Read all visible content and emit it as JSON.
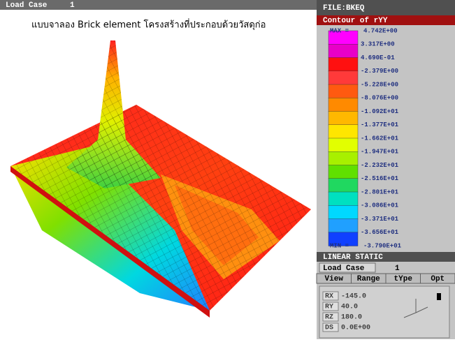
{
  "caption": "แบบจาลอง Brick element โครงสร้างที่ประกอบด้วยวัสดุก่อ",
  "top_bar": {
    "label": "Load Case",
    "value": "1"
  },
  "side_panel": {
    "file": "FILE:BKEQ",
    "contour_title": "Contour of rYY",
    "legend": {
      "max_label": "MAX =",
      "max_value": "4.742E+00",
      "entries": [
        "3.317E+00",
        "4.690E-01",
        "-2.379E+00",
        "-5.228E+00",
        "-8.076E+00",
        "-1.092E+01",
        "-1.377E+01",
        "-1.662E+01",
        "-1.947E+01",
        "-2.232E+01",
        "-2.516E+01",
        "-2.801E+01",
        "-3.086E+01",
        "-3.371E+01",
        "-3.656E+01"
      ],
      "min_label": "MIN =",
      "min_value": "-3.790E+01",
      "colors": [
        "#ff00ff",
        "#e800c8",
        "#ff1010",
        "#ff3a3a",
        "#ff5a10",
        "#ff8a00",
        "#ffb800",
        "#ffe600",
        "#e2ff00",
        "#a8f000",
        "#60e000",
        "#20d860",
        "#00e0c0",
        "#00d8ff",
        "#20a0ff",
        "#1040ff"
      ]
    },
    "analysis": "LINEAR STATIC",
    "load_case": {
      "label": "Load Case",
      "value": "1"
    },
    "menu": [
      "View",
      "Range",
      "tYpe",
      "Opt"
    ],
    "view_params": [
      [
        "RX",
        "-145.0"
      ],
      [
        "RY",
        "40.0"
      ],
      [
        "RZ",
        "180.0"
      ],
      [
        "DS",
        "0.0E+00"
      ]
    ]
  }
}
